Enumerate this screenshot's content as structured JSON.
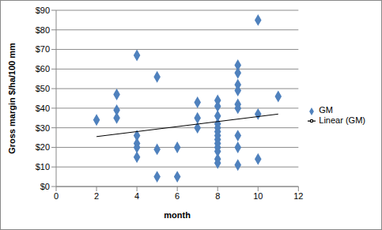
{
  "chart_data": {
    "type": "scatter",
    "x_label": "month",
    "y_label": "Gross margin $/ha/100 mm",
    "xlim": [
      0,
      12
    ],
    "xticks": [
      0,
      2,
      4,
      6,
      8,
      10,
      12
    ],
    "ylim": [
      0,
      90
    ],
    "yticks": [
      {
        "value": 0,
        "label": "$0"
      },
      {
        "value": 10,
        "label": "$10"
      },
      {
        "value": 20,
        "label": "$20"
      },
      {
        "value": 30,
        "label": "$30"
      },
      {
        "value": 40,
        "label": "$40"
      },
      {
        "value": 50,
        "label": "$50"
      },
      {
        "value": 60,
        "label": "$60"
      },
      {
        "value": 70,
        "label": "$70"
      },
      {
        "value": 80,
        "label": "$80"
      },
      {
        "value": 90,
        "label": "$90"
      }
    ],
    "grid": true,
    "legend": "right",
    "series": [
      {
        "name": "GM",
        "color": "#4f81bd",
        "marker": "diamond",
        "x": [
          2,
          3,
          3,
          3,
          4,
          4,
          4,
          4,
          4,
          5,
          5,
          5,
          6,
          6,
          7,
          7,
          7,
          8,
          8,
          8,
          8,
          8,
          8,
          8,
          8,
          8,
          8,
          8,
          8,
          8,
          9,
          9,
          9,
          9,
          9,
          9,
          9,
          9,
          9,
          10,
          10,
          10,
          11
        ],
        "values": [
          34,
          47,
          39,
          35,
          67,
          26,
          22,
          20,
          15,
          56,
          19,
          5,
          20,
          5,
          43,
          35,
          30,
          44,
          41,
          36,
          32,
          30,
          28,
          26,
          24,
          22,
          20,
          18,
          14,
          12,
          62,
          58,
          52,
          49,
          42,
          40,
          26,
          20,
          11,
          85,
          37,
          14,
          46
        ]
      },
      {
        "name": "Linear (GM)",
        "type": "line",
        "color": "#000000",
        "line_style": "solid",
        "x": [
          2,
          11
        ],
        "values": [
          25.5,
          37
        ]
      }
    ]
  }
}
